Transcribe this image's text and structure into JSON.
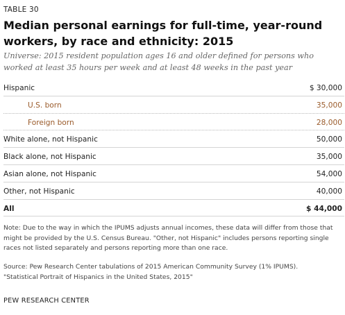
{
  "table_label": "TABLE 30",
  "title": "Median personal earnings for full-time, year-round workers, by race and ethnicity: 2015",
  "subtitle": "Universe: 2015 resident population ages 16 and older defined for persons who worked at least 35 hours per week and at least 48 weeks in the past year",
  "rows": [
    {
      "label": "Hispanic",
      "value": "$ 30,000",
      "type": "main"
    },
    {
      "label": "U.S. born",
      "value": "35,000",
      "type": "sub"
    },
    {
      "label": "Foreign born",
      "value": "28,000",
      "type": "sub"
    },
    {
      "label": "White alone, not Hispanic",
      "value": "50,000",
      "type": "main"
    },
    {
      "label": "Black alone, not Hispanic",
      "value": "35,000",
      "type": "main"
    },
    {
      "label": "Asian alone, not Hispanic",
      "value": "54,000",
      "type": "main"
    },
    {
      "label": "Other, not Hispanic",
      "value": "40,000",
      "type": "main"
    },
    {
      "label": "All",
      "value": "$ 44,000",
      "type": "total"
    }
  ],
  "note": "Note: Due to the way in which the IPUMS adjusts annual incomes, these data will differ from those that might be provided by the U.S. Census Bureau. \"Other, not Hispanic\" includes persons reporting single races not listed separately and persons reporting more than one race.",
  "source": "Source: Pew Research Center tabulations of 2015 American Community Survey (1% IPUMS).",
  "source_title": "\"Statistical Portrait of Hispanics in the United States, 2015\"",
  "organization": "PEW RESEARCH CENTER",
  "colors": {
    "subcategory_text": "#9a5b2b",
    "subtitle_text": "#666666",
    "rule": "#d4d4d4"
  }
}
